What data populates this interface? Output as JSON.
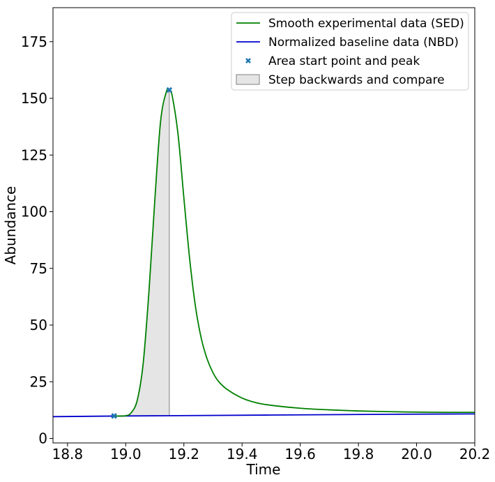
{
  "chart_data": {
    "type": "line",
    "xlabel": "Time",
    "ylabel": "Abundance",
    "xlim": [
      18.75,
      20.2
    ],
    "ylim": [
      -2,
      190
    ],
    "x_ticks": [
      18.8,
      19.0,
      19.2,
      19.4,
      19.6,
      19.8,
      20.0,
      20.2
    ],
    "x_tick_labels": [
      "18.8",
      "19.0",
      "19.2",
      "19.4",
      "19.6",
      "19.8",
      "20.0",
      "20.2"
    ],
    "y_ticks": [
      0,
      25,
      50,
      75,
      100,
      125,
      150,
      175
    ],
    "y_tick_labels": [
      "0",
      "25",
      "50",
      "75",
      "100",
      "125",
      "150",
      "175"
    ],
    "grid": false,
    "legend_position": "top-right",
    "series": [
      {
        "name": "Smooth experimental data (SED)",
        "kind": "line",
        "color": "#008000",
        "x": [
          18.96,
          19.0,
          19.02,
          19.04,
          19.06,
          19.08,
          19.1,
          19.12,
          19.14,
          19.15,
          19.16,
          19.18,
          19.2,
          19.22,
          19.24,
          19.26,
          19.28,
          19.3,
          19.32,
          19.35,
          19.4,
          19.45,
          19.5,
          19.6,
          19.7,
          19.8,
          19.9,
          20.0,
          20.1,
          20.2
        ],
        "y": [
          9.9,
          10.0,
          11.5,
          17.0,
          33.0,
          65.0,
          105.0,
          140.0,
          153.0,
          153.7,
          151.0,
          134.0,
          106.0,
          79.0,
          58.0,
          44.0,
          35.0,
          29.0,
          25.0,
          21.5,
          17.8,
          15.7,
          14.6,
          13.3,
          12.6,
          12.1,
          11.8,
          11.6,
          11.5,
          11.5
        ]
      },
      {
        "name": "Normalized baseline data (NBD)",
        "kind": "line",
        "color": "#0000cc",
        "x": [
          18.75,
          19.0,
          19.5,
          20.0,
          20.2
        ],
        "y": [
          9.6,
          9.9,
          10.3,
          10.7,
          10.8
        ]
      },
      {
        "name": "Area start point and peak",
        "kind": "scatter",
        "color": "#1f77b4",
        "x": [
          18.96,
          19.15
        ],
        "y": [
          9.9,
          153.7
        ]
      },
      {
        "name": "Step backwards and compare",
        "kind": "area",
        "fill": "#e5e5e5",
        "edge": "#808080",
        "x_start": 18.96,
        "x_end": 19.15
      }
    ]
  }
}
